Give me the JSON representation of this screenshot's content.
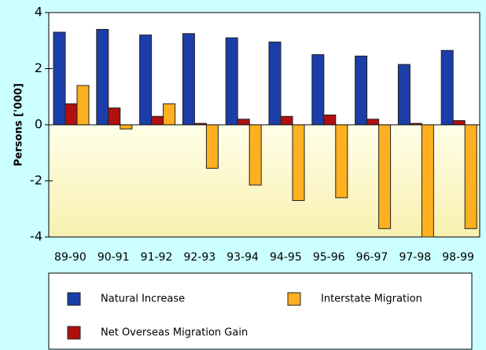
{
  "chart_data": {
    "type": "bar",
    "ylabel": "Persons ['000]",
    "categories": [
      "89-90",
      "90-91",
      "91-92",
      "92-93",
      "93-94",
      "94-95",
      "95-96",
      "96-97",
      "97-98",
      "98-99"
    ],
    "series": [
      {
        "name": "Natural Increase",
        "color": "#1c3ea8",
        "values": [
          3.3,
          3.4,
          3.2,
          3.25,
          3.1,
          2.95,
          2.5,
          2.45,
          2.15,
          2.65
        ]
      },
      {
        "name": "Net Overseas Migration Gain",
        "color": "#b01010",
        "values": [
          0.75,
          0.6,
          0.3,
          0.05,
          0.2,
          0.3,
          0.35,
          0.2,
          0.05,
          0.15
        ]
      },
      {
        "name": "Interstate Migration",
        "color": "#ffb020",
        "values": [
          1.4,
          -0.15,
          0.75,
          -1.55,
          -2.15,
          -2.7,
          -2.6,
          -3.7,
          -4.0,
          -3.7
        ]
      }
    ],
    "ylim": [
      -4,
      4
    ],
    "yticks": [
      -4,
      -2,
      0,
      2,
      4
    ],
    "legend": "bottom"
  }
}
